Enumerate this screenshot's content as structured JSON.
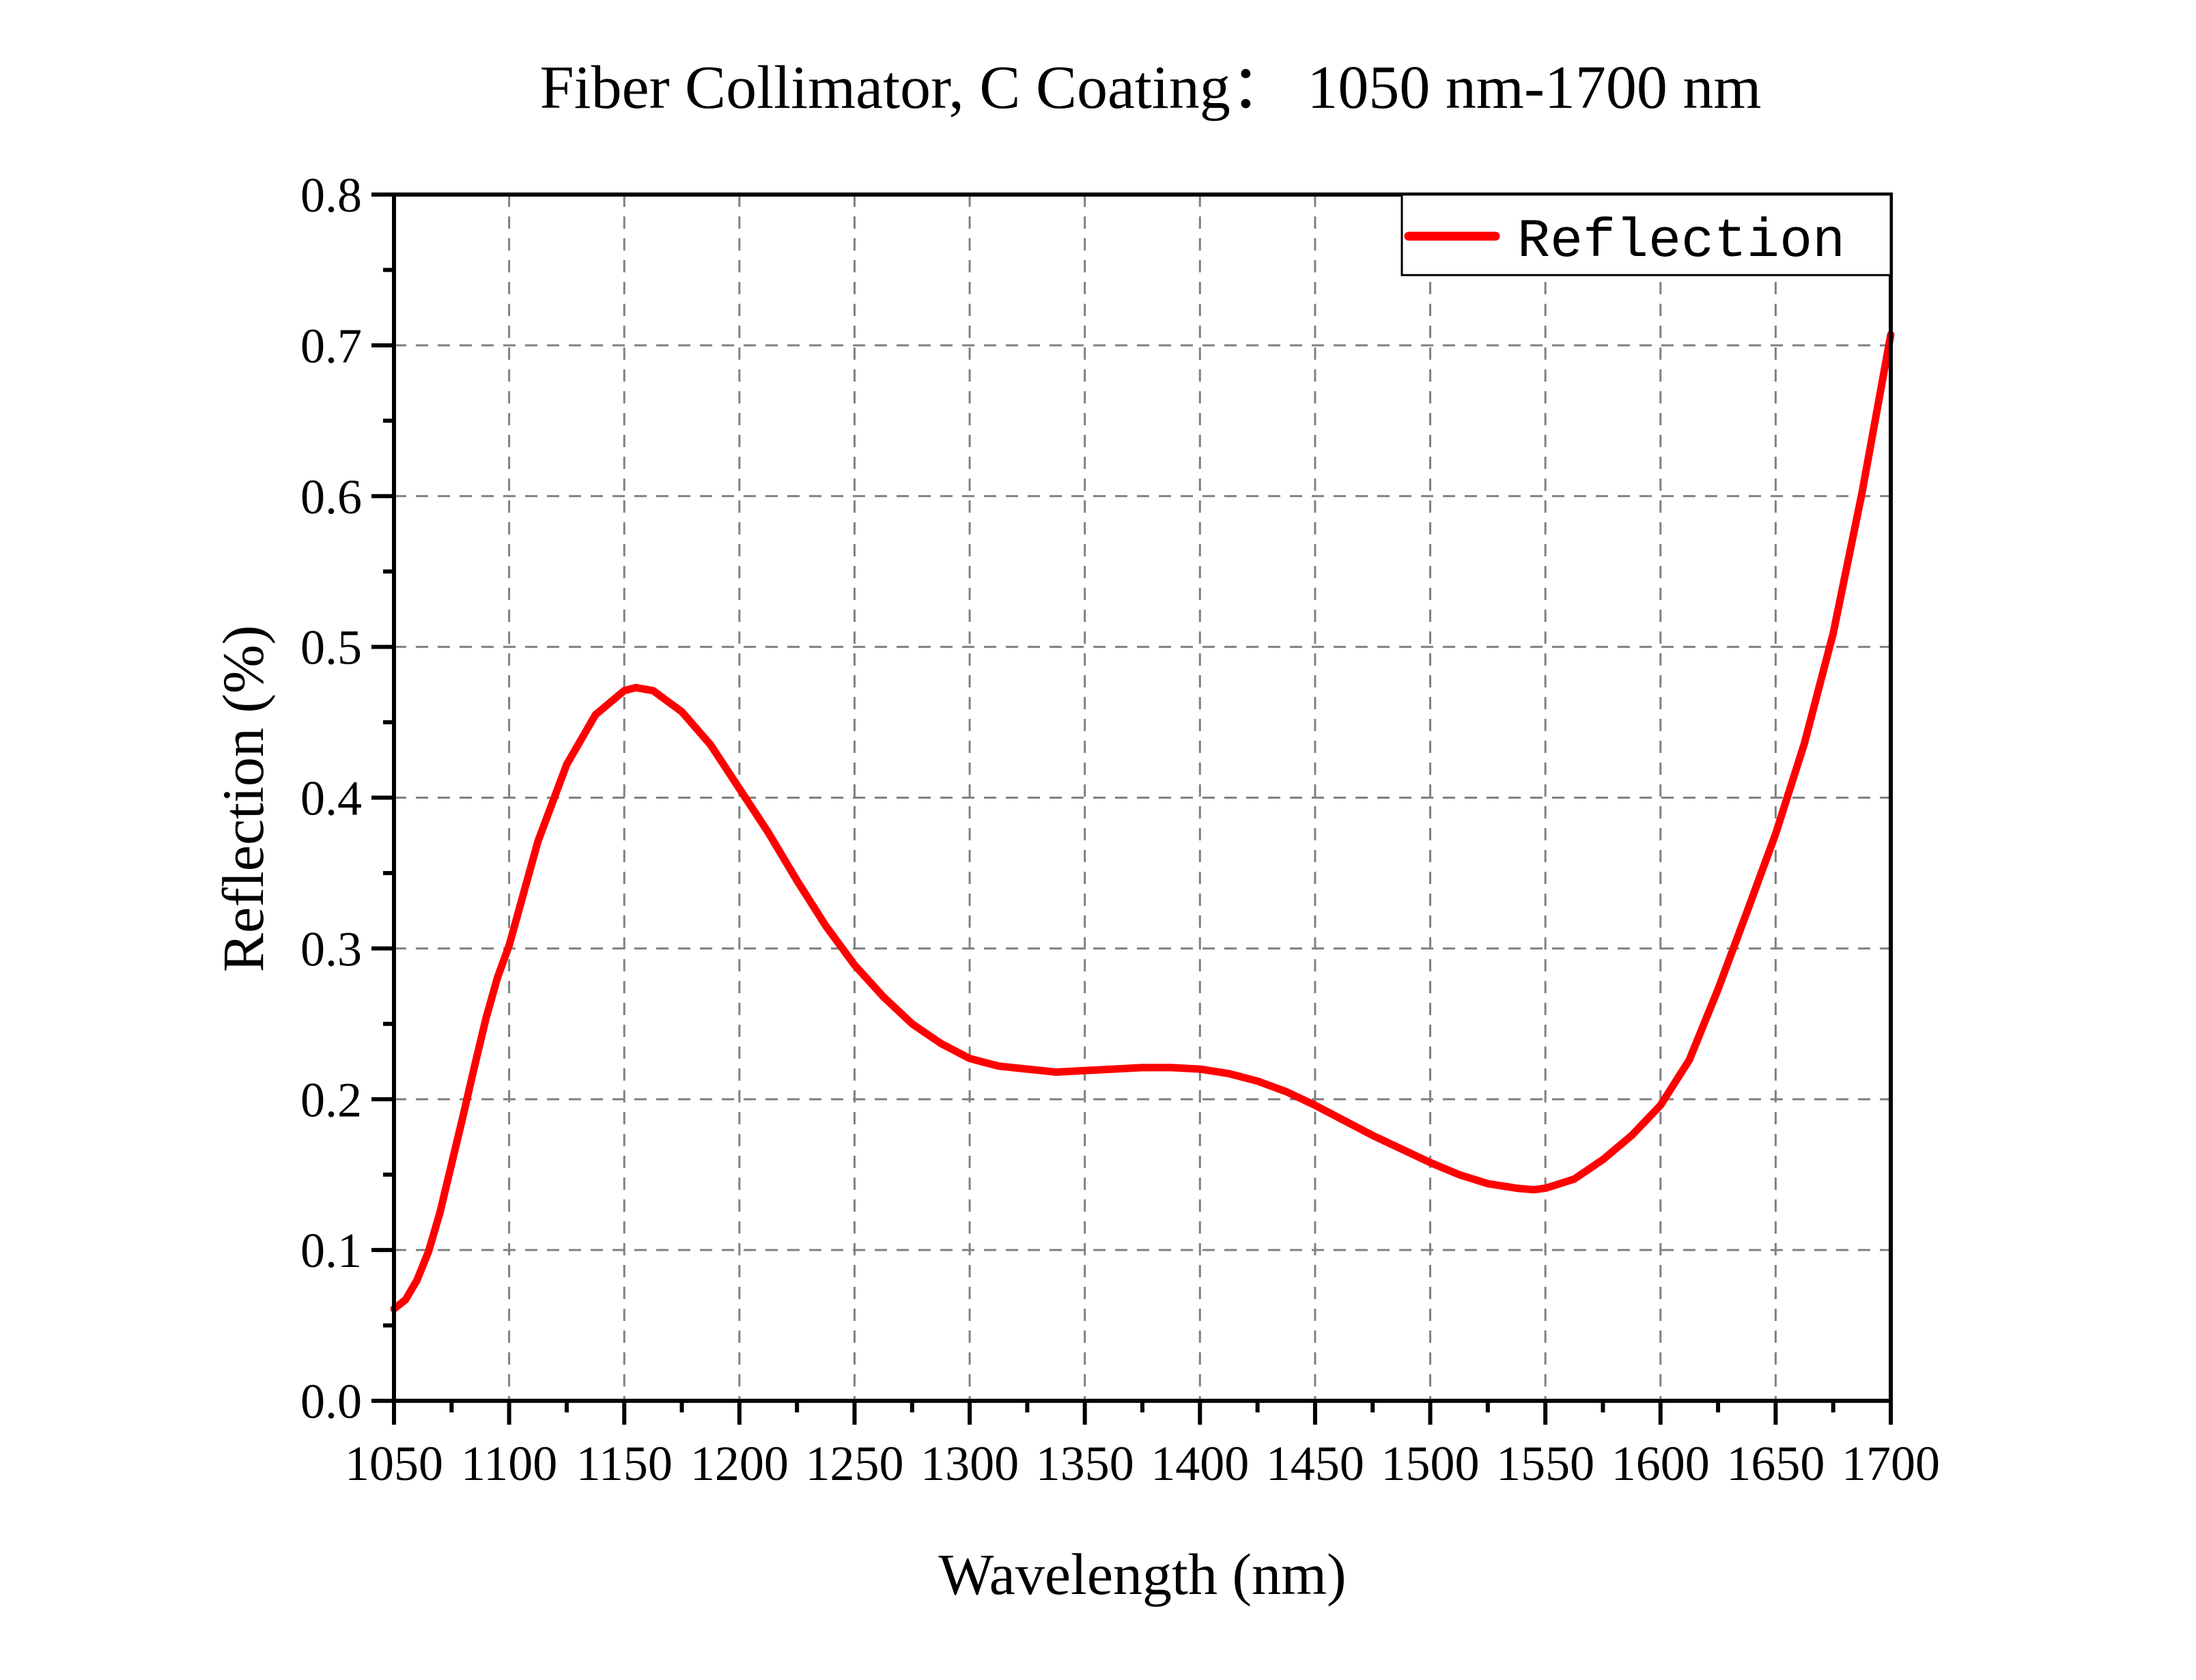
{
  "chart_data": {
    "type": "line",
    "title": "Fiber Collimator, C Coating： 1050 nm-1700 nm",
    "xlabel": "Wavelength (nm)",
    "ylabel": "Reflection (%)",
    "xlim": [
      1050,
      1700
    ],
    "ylim": [
      0.0,
      0.8
    ],
    "xticks": [
      1050,
      1100,
      1150,
      1200,
      1250,
      1300,
      1350,
      1400,
      1450,
      1500,
      1550,
      1600,
      1650,
      1700
    ],
    "xtick_labels": [
      "1050",
      "1100",
      "1150",
      "1200",
      "1250",
      "1300",
      "1350",
      "1400",
      "1450",
      "1500",
      "1550",
      "1600",
      "1650",
      "1700"
    ],
    "yticks": [
      0.0,
      0.1,
      0.2,
      0.3,
      0.4,
      0.5,
      0.6,
      0.7,
      0.8
    ],
    "ytick_labels": [
      "0.0",
      "0.1",
      "0.2",
      "0.3",
      "0.4",
      "0.5",
      "0.6",
      "0.7",
      "0.8"
    ],
    "x_minor_step": 25,
    "y_minor_step": 0.05,
    "grid": true,
    "grid_style": "dashed",
    "legend": {
      "position": "top-right",
      "entries": [
        "Reflection"
      ]
    },
    "series": [
      {
        "name": "Reflection",
        "color": "#ff0000",
        "x": [
          1050,
          1055,
          1060,
          1065,
          1070,
          1075,
          1080,
          1085,
          1090,
          1095,
          1100,
          1112.5,
          1125,
          1137.5,
          1150,
          1155,
          1162.5,
          1175,
          1187.5,
          1200,
          1212.5,
          1225,
          1237.5,
          1250,
          1262.5,
          1275,
          1287.5,
          1300,
          1312.5,
          1325,
          1337.5,
          1350,
          1362.5,
          1375,
          1387.5,
          1400,
          1412.5,
          1425,
          1437.5,
          1450,
          1462.5,
          1475,
          1487.5,
          1500,
          1512.5,
          1525,
          1537.5,
          1545,
          1550,
          1562.5,
          1575,
          1587.5,
          1600,
          1612.5,
          1625,
          1637.5,
          1650,
          1662.5,
          1675,
          1687.5,
          1700
        ],
        "y": [
          0.061,
          0.067,
          0.08,
          0.099,
          0.125,
          0.157,
          0.189,
          0.222,
          0.254,
          0.281,
          0.302,
          0.371,
          0.422,
          0.455,
          0.471,
          0.473,
          0.471,
          0.457,
          0.435,
          0.406,
          0.377,
          0.345,
          0.315,
          0.289,
          0.268,
          0.25,
          0.237,
          0.227,
          0.222,
          0.22,
          0.218,
          0.219,
          0.22,
          0.221,
          0.221,
          0.22,
          0.217,
          0.212,
          0.205,
          0.196,
          0.186,
          0.176,
          0.167,
          0.158,
          0.15,
          0.144,
          0.141,
          0.14,
          0.141,
          0.147,
          0.16,
          0.176,
          0.196,
          0.226,
          0.273,
          0.324,
          0.376,
          0.436,
          0.509,
          0.602,
          0.707
        ]
      }
    ]
  }
}
